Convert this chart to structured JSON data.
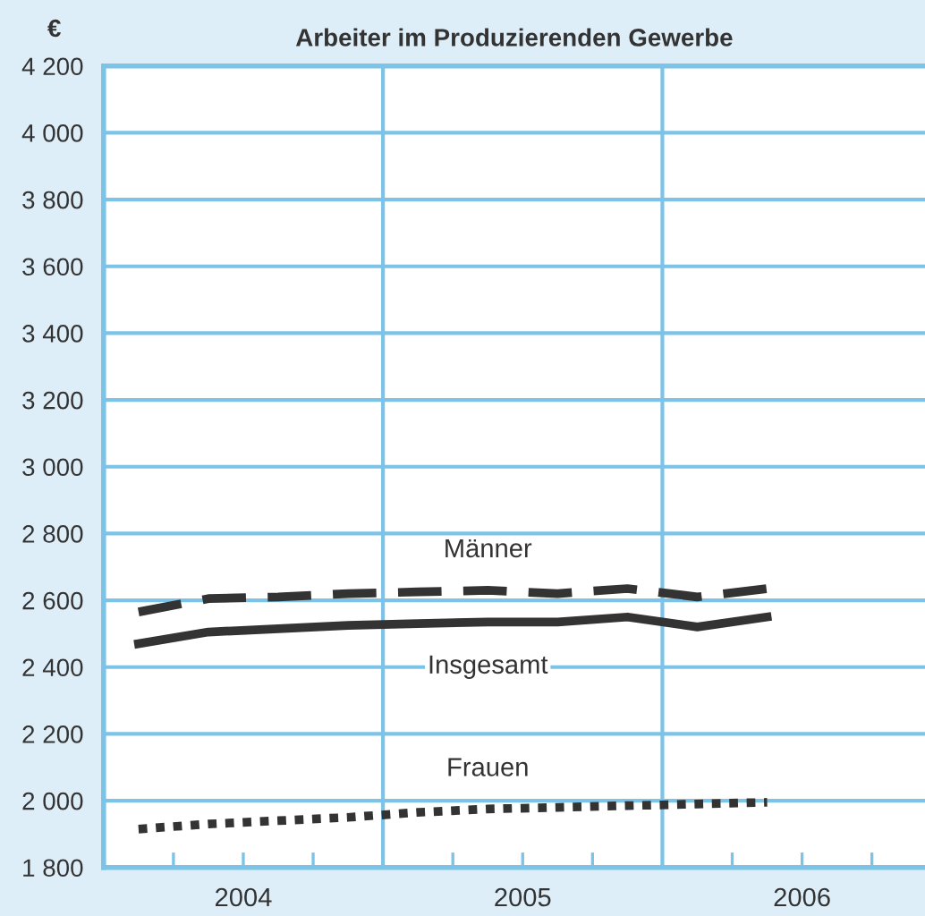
{
  "chart_data": {
    "type": "line",
    "title": "Arbeiter im Produzierenden Gewerbe",
    "ylabel": "€",
    "x": [
      2004.125,
      2004.375,
      2004.625,
      2004.875,
      2005.125,
      2005.375,
      2005.625,
      2005.875,
      2006.125,
      2006.375
    ],
    "series": [
      {
        "name": "Männer",
        "color": "#333333",
        "line_style": "dashed",
        "values": [
          2565,
          2605,
          2610,
          2620,
          2625,
          2630,
          2620,
          2635,
          2610,
          2635
        ]
      },
      {
        "name": "Insgesamt",
        "color": "#333333",
        "line_style": "solid",
        "values": [
          2470,
          2505,
          2515,
          2525,
          2530,
          2535,
          2535,
          2550,
          2520,
          2550
        ]
      },
      {
        "name": "Frauen",
        "color": "#333333",
        "line_style": "dotted",
        "values": [
          1915,
          1930,
          1940,
          1950,
          1965,
          1975,
          1980,
          1985,
          1990,
          1995
        ]
      }
    ],
    "ylim": [
      1800,
      4200
    ],
    "yticks": [
      {
        "value": 1800,
        "label": "1 800"
      },
      {
        "value": 2000,
        "label": "2 000"
      },
      {
        "value": 2200,
        "label": "2 200"
      },
      {
        "value": 2400,
        "label": "2 400"
      },
      {
        "value": 2600,
        "label": "2 600"
      },
      {
        "value": 2800,
        "label": "2 800"
      },
      {
        "value": 3000,
        "label": "3 000"
      },
      {
        "value": 3200,
        "label": "3 200"
      },
      {
        "value": 3400,
        "label": "3 400"
      },
      {
        "value": 3600,
        "label": "3 600"
      },
      {
        "value": 3800,
        "label": "3 800"
      },
      {
        "value": 4000,
        "label": "4 000"
      },
      {
        "value": 4200,
        "label": "4 200"
      }
    ],
    "xlim": [
      2004,
      2006.94
    ],
    "xticks": [
      {
        "value": 2004.25,
        "label": null
      },
      {
        "value": 2004.5,
        "label": "2004"
      },
      {
        "value": 2004.75,
        "label": null
      },
      {
        "value": 2005.25,
        "label": null
      },
      {
        "value": 2005.5,
        "label": "2005"
      },
      {
        "value": 2005.75,
        "label": null
      },
      {
        "value": 2006.25,
        "label": null
      },
      {
        "value": 2006.5,
        "label": "2006"
      },
      {
        "value": 2006.75,
        "label": null
      }
    ],
    "ref_lines": [
      {
        "axis": "x",
        "value": 2005,
        "label": null,
        "color": "#7cc3e8"
      },
      {
        "axis": "x",
        "value": 2006,
        "label": null,
        "color": "#7cc3e8"
      }
    ],
    "grid": "y",
    "legend": false,
    "marker": "none"
  }
}
